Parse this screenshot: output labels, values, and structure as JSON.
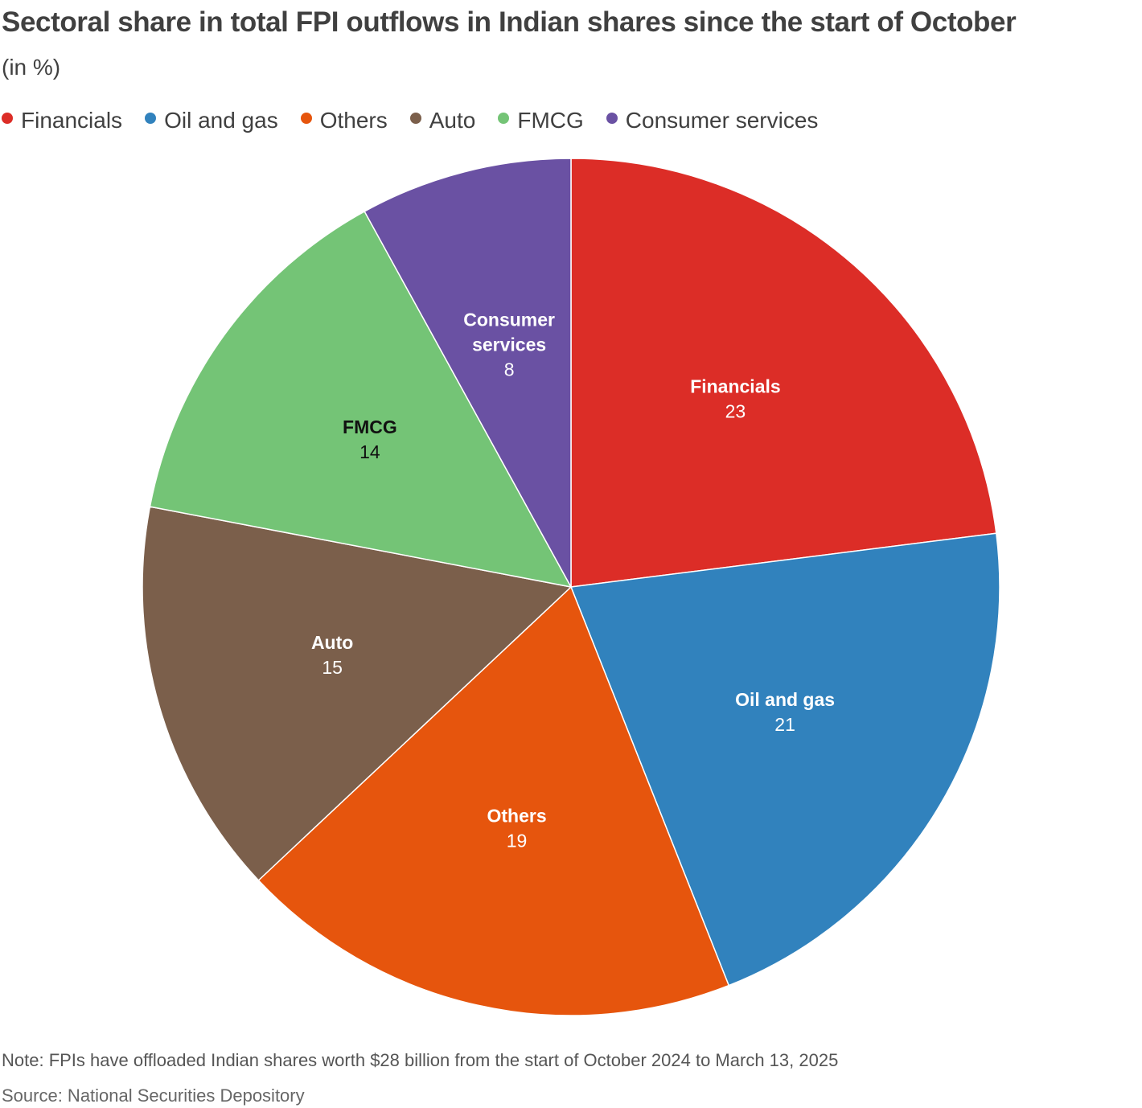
{
  "header": {
    "title": "Sectoral share in total FPI outflows in Indian shares since the start of October",
    "subtitle": "(in %)"
  },
  "legend": {
    "items": [
      {
        "label": "Financials",
        "color": "#dc2d27"
      },
      {
        "label": "Oil and gas",
        "color": "#3182bd"
      },
      {
        "label": "Others",
        "color": "#e6550d"
      },
      {
        "label": "Auto",
        "color": "#7b5f4b"
      },
      {
        "label": "FMCG",
        "color": "#74c476"
      },
      {
        "label": "Consumer services",
        "color": "#6a51a3"
      }
    ]
  },
  "chart_data": {
    "type": "pie",
    "categories": [
      "Financials",
      "Oil and gas",
      "Others",
      "Auto",
      "FMCG",
      "Consumer services"
    ],
    "values": [
      23,
      21,
      19,
      15,
      14,
      8
    ],
    "unit": "%",
    "colors": [
      "#dc2d27",
      "#3182bd",
      "#e6550d",
      "#7b5f4b",
      "#74c476",
      "#6a51a3"
    ],
    "label_colors": [
      "#ffffff",
      "#ffffff",
      "#ffffff",
      "#ffffff",
      "#111111",
      "#ffffff"
    ],
    "slice_labels": [
      [
        "Financials"
      ],
      [
        "Oil and gas"
      ],
      [
        "Others"
      ],
      [
        "Auto"
      ],
      [
        "FMCG"
      ],
      [
        "Consumer",
        "services"
      ]
    ],
    "start_angle": "12 o'clock",
    "direction": "clockwise",
    "legend_position": "top-left"
  },
  "footer": {
    "note": "Note: FPIs have offloaded Indian shares worth $28 billion from the start of October 2024 to March 13, 2025",
    "source": "Source: National Securities Depository"
  }
}
